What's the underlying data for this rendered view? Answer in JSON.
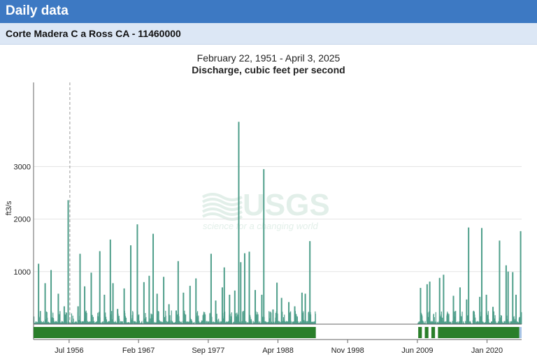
{
  "header": {
    "title": "Daily data"
  },
  "site": {
    "name": "Corte Madera C a Ross CA - 11460000"
  },
  "chart_data": {
    "type": "area",
    "title": "February 22, 1951 - April 3, 2025",
    "subtitle": "Discharge, cubic feet per second",
    "ylabel": "ft3/s",
    "xlabel": "",
    "ylim": [
      0,
      4600
    ],
    "xlim": [
      1951.14,
      2025.25
    ],
    "y_ticks": [
      {
        "value": 1000,
        "label": "1000"
      },
      {
        "value": 2000,
        "label": "2000"
      },
      {
        "value": 3000,
        "label": "3000"
      }
    ],
    "x_ticks": [
      {
        "value": 1956.54,
        "label": "Jul 1956"
      },
      {
        "value": 1967.08,
        "label": "Feb 1967"
      },
      {
        "value": 1977.67,
        "label": "Sep 1977"
      },
      {
        "value": 1988.25,
        "label": "Apr 1988"
      },
      {
        "value": 1998.83,
        "label": "Nov 1998"
      },
      {
        "value": 2009.42,
        "label": "Jun 2009"
      },
      {
        "value": 2020.0,
        "label": "Jan 2020"
      }
    ],
    "grid": true,
    "watermark": {
      "main": "USGS",
      "tagline": "science for a changing world"
    },
    "marker_line_date": 1956.65,
    "peaks": [
      [
        1951.9,
        1150
      ],
      [
        1952.9,
        780
      ],
      [
        1953.8,
        1030
      ],
      [
        1954.9,
        580
      ],
      [
        1955.8,
        340
      ],
      [
        1956.4,
        2360
      ],
      [
        1957.9,
        340
      ],
      [
        1958.2,
        1340
      ],
      [
        1958.9,
        720
      ],
      [
        1959.9,
        980
      ],
      [
        1960.9,
        150
      ],
      [
        1961.2,
        1390
      ],
      [
        1961.9,
        560
      ],
      [
        1962.8,
        1610
      ],
      [
        1963.2,
        780
      ],
      [
        1963.9,
        290
      ],
      [
        1964.9,
        680
      ],
      [
        1965.9,
        1500
      ],
      [
        1966.9,
        1900
      ],
      [
        1967.9,
        800
      ],
      [
        1968.7,
        920
      ],
      [
        1969.3,
        1720
      ],
      [
        1969.9,
        580
      ],
      [
        1970.9,
        900
      ],
      [
        1971.7,
        380
      ],
      [
        1972.8,
        260
      ],
      [
        1973.1,
        1200
      ],
      [
        1973.9,
        600
      ],
      [
        1974.9,
        730
      ],
      [
        1975.8,
        870
      ],
      [
        1976.7,
        70
      ],
      [
        1977.2,
        60
      ],
      [
        1978.1,
        1340
      ],
      [
        1978.8,
        450
      ],
      [
        1979.8,
        700
      ],
      [
        1980.1,
        1080
      ],
      [
        1980.9,
        560
      ],
      [
        1981.7,
        640
      ],
      [
        1982.3,
        3850
      ],
      [
        1982.6,
        1180
      ],
      [
        1983.2,
        1350
      ],
      [
        1983.9,
        1380
      ],
      [
        1984.8,
        650
      ],
      [
        1985.8,
        560
      ],
      [
        1986.1,
        2950
      ],
      [
        1987.5,
        280
      ],
      [
        1988.1,
        790
      ],
      [
        1988.8,
        500
      ],
      [
        1989.9,
        420
      ],
      [
        1990.8,
        340
      ],
      [
        1991.9,
        600
      ],
      [
        1992.4,
        580
      ],
      [
        1993.1,
        1580
      ],
      [
        2009.9,
        690
      ],
      [
        2010.9,
        760
      ],
      [
        2011.3,
        810
      ],
      [
        2012.8,
        880
      ],
      [
        2013.4,
        940
      ],
      [
        2014.9,
        540
      ],
      [
        2015.9,
        700
      ],
      [
        2016.9,
        470
      ],
      [
        2017.2,
        1840
      ],
      [
        2018.9,
        520
      ],
      [
        2019.2,
        1830
      ],
      [
        2019.9,
        560
      ],
      [
        2020.9,
        330
      ],
      [
        2021.9,
        1590
      ],
      [
        2022.9,
        1120
      ],
      [
        2023.2,
        1000
      ],
      [
        2023.9,
        990
      ],
      [
        2024.4,
        560
      ],
      [
        2025.1,
        1770
      ]
    ],
    "data_gaps": [
      [
        1994.0,
        2009.5
      ]
    ],
    "approval_bar": {
      "color": "#2a7f2a",
      "pending_color": "#a8c4e6",
      "segments": [
        [
          1951.14,
          1994.0
        ],
        [
          2009.55,
          2010.1
        ],
        [
          2010.55,
          2011.1
        ],
        [
          2011.55,
          2012.1
        ],
        [
          2012.55,
          2024.9
        ]
      ],
      "pending": [
        [
          2024.9,
          2025.25
        ]
      ]
    },
    "series_color": "#4e9e8a"
  }
}
